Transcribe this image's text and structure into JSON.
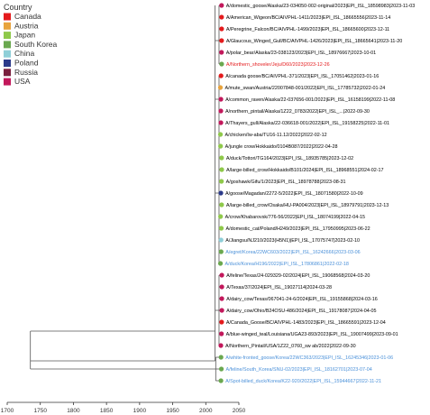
{
  "chart_data": {
    "type": "phylogenetic_tree",
    "legend": {
      "title": "Country",
      "entries": [
        {
          "name": "Canada",
          "color": "#e41a1c"
        },
        {
          "name": "Austria",
          "color": "#e8a33d"
        },
        {
          "name": "Japan",
          "color": "#8fc94a"
        },
        {
          "name": "South Korea",
          "color": "#6aa84f"
        },
        {
          "name": "China",
          "color": "#8fcfd8"
        },
        {
          "name": "Poland",
          "color": "#2b3a8a"
        },
        {
          "name": "Russia",
          "color": "#7a1f3d"
        },
        {
          "name": "USA",
          "color": "#c2185b"
        }
      ]
    },
    "x_axis": {
      "ticks": [
        1700,
        1750,
        1800,
        1850,
        1900,
        1950,
        2000,
        2050
      ],
      "range": [
        1700,
        2050
      ]
    },
    "tips": [
      {
        "label": "A/domestic_goose/Alaska/23-034050-002-original/2023|EPI_ISL_18598983|2023-11-03",
        "country": "USA",
        "date": 2023.84,
        "label_color": "#000000"
      },
      {
        "label": "A/American_Wigeon/BC/AIVPHL-1411/2023|EPI_ISL_18665556|2023-11-14",
        "country": "Canada",
        "date": 2023.87,
        "label_color": "#000000"
      },
      {
        "label": "A/Peregrine_Falcon/BC/AIVPHL-1499/2023|EPI_ISL_18665600|2023-12-11",
        "country": "Canada",
        "date": 2023.94,
        "label_color": "#000000"
      },
      {
        "label": "A/Glaucous_Winged_Gull/BC/AIVPHL-1426/2023|EPI_ISL_18665641|2023-11-20",
        "country": "Canada",
        "date": 2023.89,
        "label_color": "#000000"
      },
      {
        "label": "A/polar_bear/Alaska/23-038123/2023|EPI_ISL_18976667|2023-10-01",
        "country": "USA",
        "date": 2023.75,
        "label_color": "#000000"
      },
      {
        "label": "A/Northern_shoveler/Jeju/D60/2023|2023-12-26",
        "country": "South Korea",
        "date": 2023.98,
        "label_color": "#e41a1c"
      },
      {
        "label": "A/canada goose/BC/AIVPHL-371/2023|EPI_ISL_17051462|2023-01-16",
        "country": "Canada",
        "date": 2023.04,
        "label_color": "#000000"
      },
      {
        "label": "A/mute_swan/Austria/22007848-001/2022|EPI_ISL_17785732|2022-01-24",
        "country": "Austria",
        "date": 2022.06,
        "label_color": "#000000"
      },
      {
        "label": "A/common_raven/Alaska/22-037656-001/2022|EPI_ISL_16158199|2022-11-08",
        "country": "USA",
        "date": 2022.85,
        "label_color": "#000000"
      },
      {
        "label": "A/northern_pintail/Alaska/1Z22_0783/2022|EPI_ISL_...|2022-09-30",
        "country": "USA",
        "date": 2022.75,
        "label_color": "#000000"
      },
      {
        "label": "A/Thayers_gull/Alaska/22-036618-001/2022|EPI_ISL_19158225|2022-11-01",
        "country": "USA",
        "date": 2022.83,
        "label_color": "#000000"
      },
      {
        "label": "A/chicken/Iw-aba/TU16-11.12/2022|2022-02-12",
        "country": "Japan",
        "date": 2022.12,
        "label_color": "#000000"
      },
      {
        "label": "A/jungle crow/Hokkaido/0104B087/2022|2022-04-28",
        "country": "Japan",
        "date": 2022.32,
        "label_color": "#000000"
      },
      {
        "label": "A/duck/Tottori/TG164/2023|EPI_ISL_18935785|2023-12-02",
        "country": "Japan",
        "date": 2023.92,
        "label_color": "#000000"
      },
      {
        "label": "A/large-billed_crow/Hokkaido/B101/2024|EPI_ISL_18968551|2024-02-17",
        "country": "Japan",
        "date": 2024.13,
        "label_color": "#000000"
      },
      {
        "label": "A/goshawk/Gifu/1/2023|EPI_ISL_18978788|2023-08-31",
        "country": "Japan",
        "date": 2023.66,
        "label_color": "#000000"
      },
      {
        "label": "A/goose/Magadan/2272-5/2022|EPI_ISL_18071580|2022-10-09",
        "country": "Poland",
        "date": 2022.77,
        "label_color": "#000000"
      },
      {
        "label": "A/large-billed_crow/Osaka/HU-PA004/2023|EPI_ISL_18979791|2023-12-13",
        "country": "Japan",
        "date": 2023.95,
        "label_color": "#000000"
      },
      {
        "label": "A/crow/Khabarovsk/776-56/2022|EPI_ISL_18074199|2022-04-15",
        "country": "Japan",
        "date": 2022.29,
        "label_color": "#000000"
      },
      {
        "label": "A/domestic_cat/Poland/H249/2023|EPI_ISL_17950995|2023-06-22",
        "country": "Japan",
        "date": 2023.47,
        "label_color": "#000000"
      },
      {
        "label": "A/Jiangsu/NJ210/2023(H5N1)|EPI_ISL_17075747|2023-02-10",
        "country": "China",
        "date": 2023.11,
        "label_color": "#000000"
      },
      {
        "label": "A/egret/Korea/22WC603/2022|EPI_ISL_16242666|2023-03-06",
        "country": "South Korea",
        "date": 2023.18,
        "label_color": "#4a90d9"
      },
      {
        "label": "A/duck/Korea/H196/2022|EPI_ISL_17806861|2022-02-18",
        "country": "South Korea",
        "date": 2022.13,
        "label_color": "#4a90d9"
      },
      {
        "label": "A/feline/Texas/24-029329-02/2024|EPI_ISL_19068568|2024-03-20",
        "country": "USA",
        "date": 2024.22,
        "label_color": "#000000"
      },
      {
        "label": "A/Texas/37/2024|EPI_ISL_19027114|2024-03-28",
        "country": "USA",
        "date": 2024.24,
        "label_color": "#000000"
      },
      {
        "label": "A/dairy_cow/Texas/067041-24-6/2024|EPI_ISL_19155868|2024-03-16",
        "country": "USA",
        "date": 2024.21,
        "label_color": "#000000"
      },
      {
        "label": "A/dairy_cow/Ohio/B24OSU-486/2024|EPI_ISL_19178087|2024-04-05",
        "country": "USA",
        "date": 2024.26,
        "label_color": "#000000"
      },
      {
        "label": "A/Canada_Goose/BC/AIVPHL-1483/2023|EPI_ISL_18665591|2023-12-04",
        "country": "Canada",
        "date": 2023.93,
        "label_color": "#000000"
      },
      {
        "label": "A/blue-winged_teal/Louisiana/UGA23-893/2023|EPI_ISL_19007499|2023-09-01",
        "country": "USA",
        "date": 2023.67,
        "label_color": "#000000"
      },
      {
        "label": "A/Northern_Pintail/USA/1Z22_0760_sw ab/2022|2022-09-30",
        "country": "USA",
        "date": 2022.75,
        "label_color": "#000000"
      },
      {
        "label": "A/white-fronted_goose/Korea/22WC363/2023|EPI_ISL_16245346|2023-01-06",
        "country": "South Korea",
        "date": 2023.02,
        "label_color": "#4a90d9"
      },
      {
        "label": "A/feline/South_Korea/SNU-02/2023|EPI_ISL_18162701|2023-07-04",
        "country": "South Korea",
        "date": 2023.51,
        "label_color": "#4a90d9"
      },
      {
        "label": "A/Spot-billed_duck/Korea/K22-920/2022|EPI_ISL_15944667|2022-11-21",
        "country": "South Korea",
        "date": 2022.89,
        "label_color": "#4a90d9"
      }
    ]
  }
}
